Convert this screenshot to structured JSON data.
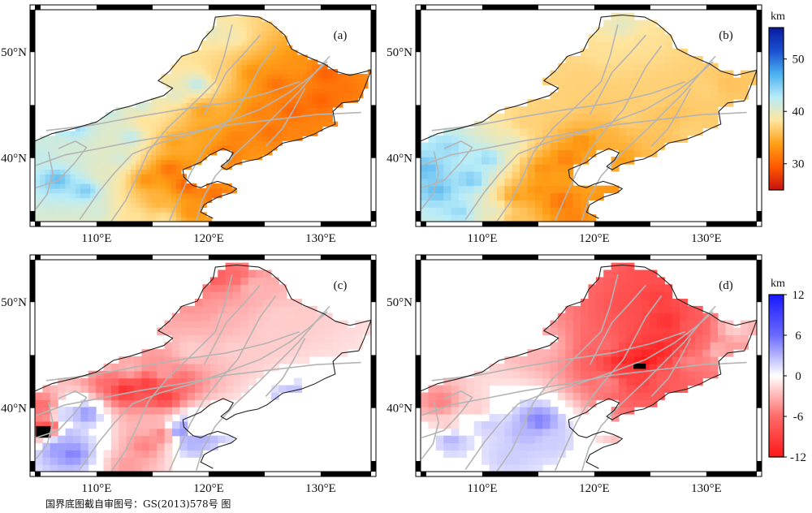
{
  "panels": [
    {
      "id": "a",
      "label": "(a)",
      "field": "model_a"
    },
    {
      "id": "b",
      "label": "(b)",
      "field": "model_b"
    },
    {
      "id": "c",
      "label": "(c)",
      "field": "diff_c"
    },
    {
      "id": "d",
      "label": "(d)",
      "field": "diff_d"
    }
  ],
  "axes": {
    "lon_ticks": [
      "110°E",
      "120°E",
      "130°E"
    ],
    "lat_ticks": [
      "50°N",
      "40°N"
    ],
    "lon_range": [
      104.5,
      134.5
    ],
    "lat_range": [
      34,
      54
    ]
  },
  "colorbars": [
    {
      "unit": "km",
      "ticks": [
        "50",
        "40",
        "30"
      ],
      "values": [
        50,
        40,
        30
      ],
      "range": [
        25,
        56
      ],
      "colors": [
        "#c81010",
        "#ff5a00",
        "#ffa018",
        "#ffe6a0",
        "#b8ecf8",
        "#4ab0f0",
        "#1a50d0",
        "#0a1aa0"
      ]
    },
    {
      "unit": "km",
      "ticks": [
        "12",
        "6",
        "0",
        "-6",
        "-12"
      ],
      "values": [
        12,
        6,
        0,
        -6,
        -12
      ],
      "range": [
        -12,
        12
      ],
      "colors": [
        "#1818ff",
        "#6a6aff",
        "#ffffff",
        "#ff6a6a",
        "#ff1818"
      ]
    }
  ],
  "colors": {
    "boundary": "#222222",
    "faults": "#b4b4b4",
    "frame": "#000000"
  },
  "credit": "国界底图截自审图号：GS(2013)578号 图"
}
